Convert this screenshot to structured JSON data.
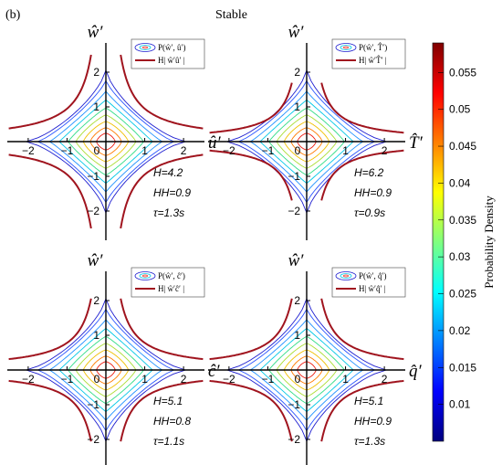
{
  "figure": {
    "panel_label": "(b)",
    "title": "Stable"
  },
  "colors": {
    "hyperbola": "#a0141e",
    "axis": "#000000",
    "colormap": [
      "#00007f",
      "#0000ff",
      "#007fff",
      "#00ffff",
      "#7fff7f",
      "#ffff00",
      "#ff7f00",
      "#ff0000",
      "#7f0000"
    ]
  },
  "chart_data": [
    {
      "type": "contour",
      "xlabel": "û′",
      "ylabel": "ŵ′",
      "xlim": [
        -2.5,
        2.5
      ],
      "ylim": [
        -2.5,
        2.5
      ],
      "xticks": [
        "−2",
        "−1",
        "0",
        "1",
        "2"
      ],
      "yticks": [
        "2",
        "1",
        "0",
        "−1",
        "−2"
      ],
      "legend": [
        "P(ŵ′, û′)",
        "H| ŵ′û′ |"
      ],
      "annotations": [
        "H=4.2",
        "HH=0.9",
        "τ=1.3s"
      ],
      "hyperbola_H": 4.2
    },
    {
      "type": "contour",
      "xlabel": "T̂′",
      "ylabel": "ŵ′",
      "xlim": [
        -2.5,
        2.5
      ],
      "ylim": [
        -2.5,
        2.5
      ],
      "xticks": [
        "−2",
        "−1",
        "0",
        "1",
        "2"
      ],
      "yticks": [
        "2",
        "1",
        "0",
        "−1",
        "−2"
      ],
      "legend": [
        "P(ŵ′, T̂′)",
        "H| ŵ′T̂′ |"
      ],
      "annotations": [
        "H=6.2",
        "HH=0.9",
        "τ=0.9s"
      ],
      "hyperbola_H": 6.2
    },
    {
      "type": "contour",
      "xlabel": "ĉ′",
      "ylabel": "ŵ′",
      "xlim": [
        -2.5,
        2.5
      ],
      "ylim": [
        -2.5,
        2.5
      ],
      "xticks": [
        "−2",
        "−1",
        "0",
        "1",
        "2"
      ],
      "yticks": [
        "2",
        "1",
        "0",
        "−1",
        "−2"
      ],
      "legend": [
        "P(ŵ′, ĉ′)",
        "H| ŵ′ĉ′ |"
      ],
      "annotations": [
        "H=5.1",
        "HH=0.8",
        "τ=1.1s"
      ],
      "hyperbola_H": 5.1
    },
    {
      "type": "contour",
      "xlabel": "q̂′",
      "ylabel": "ŵ′",
      "xlim": [
        -2.5,
        2.5
      ],
      "ylim": [
        -2.5,
        2.5
      ],
      "xticks": [
        "−2",
        "−1",
        "0",
        "1",
        "2"
      ],
      "yticks": [
        "2",
        "1",
        "0",
        "−1",
        "−2"
      ],
      "legend": [
        "P(ŵ′, q̂′)",
        "H| ŵ′q̂′ |"
      ],
      "annotations": [
        "H=5.1",
        "HH=0.9",
        "τ=1.3s"
      ],
      "hyperbola_H": 5.1
    }
  ],
  "colorbar": {
    "label": "Probability Density",
    "range": [
      0.005,
      0.059
    ],
    "ticks": [
      "0.055",
      "0.05",
      "0.045",
      "0.04",
      "0.035",
      "0.03",
      "0.025",
      "0.02",
      "0.015",
      "0.01"
    ],
    "tick_values": [
      0.055,
      0.05,
      0.045,
      0.04,
      0.035,
      0.03,
      0.025,
      0.02,
      0.015,
      0.01
    ]
  }
}
